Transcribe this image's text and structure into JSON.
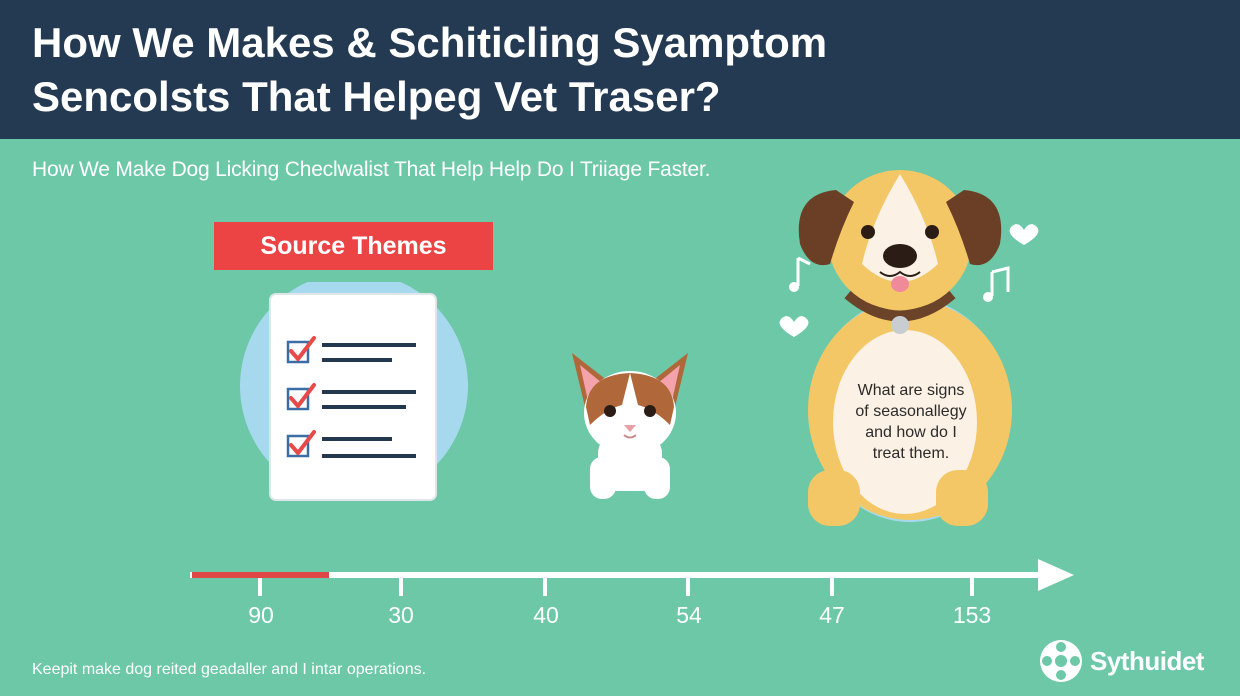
{
  "header": {
    "title_line1": "How We Makes & Schiticling Syamptom",
    "title_line2": "Sencolsts That Helpeg Vet Traser?"
  },
  "subtitle": "How We Make Dog Licking Checlwalist That Help Help Do I Triiage Faster.",
  "source_tag": "Source Themes",
  "checklist": {
    "items": [
      "checked",
      "checked",
      "checked"
    ],
    "check_color": "#e84a4a",
    "box_color": "#3a6ea5"
  },
  "dog_bubble": {
    "line1": "What are signs",
    "line2": "of seasonallegy",
    "line3": "and how do I",
    "line4": "treat them."
  },
  "timeline": {
    "labels": [
      "90",
      "30",
      "40",
      "54",
      "47",
      "153"
    ],
    "progress_fraction": 0.16,
    "progress_color": "#e04848"
  },
  "footer": {
    "note": "Keepit make dog reited geadaller and I intar operations.",
    "brand": "Sythuidet"
  },
  "colors": {
    "background": "#6cc8a6",
    "header": "#243a52",
    "tag": "#ec4444"
  }
}
